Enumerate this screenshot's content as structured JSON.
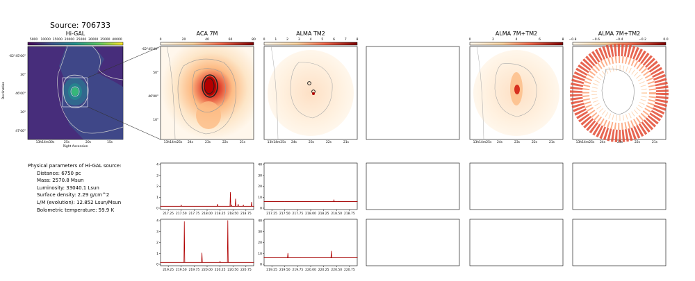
{
  "source_title": "Source: 706733",
  "panels": {
    "higal": {
      "title": "Hi-GAL",
      "colorbar_ticks": [
        "5000",
        "10000",
        "15000",
        "20000",
        "25000",
        "30000",
        "35000",
        "40000"
      ],
      "ylabel": "Declination",
      "xlabel": "Right Ascension",
      "yticks": [
        "-62°45'00\"",
        "30\"",
        "46'00\"",
        "30\"",
        "47'00\""
      ],
      "xticks": [
        "13h14m30s",
        "25s",
        "20s",
        "15s"
      ]
    },
    "aca7m": {
      "title": "ACA 7M",
      "colorbar_ticks": [
        "0",
        "20",
        "40",
        "60",
        "80"
      ],
      "yticks": [
        "-62°45'40\"",
        "50\"",
        "46'00\"",
        "10\""
      ],
      "xticks": [
        "13h14m25s",
        "24s",
        "23s",
        "22s",
        "21s"
      ]
    },
    "tm2": {
      "title": "ALMA TM2",
      "colorbar_ticks": [
        "0",
        "1",
        "2",
        "3",
        "4",
        "5",
        "6",
        "7",
        "8"
      ],
      "xticks": [
        "13h14m25s",
        "24s",
        "23s",
        "22s",
        "21s"
      ]
    },
    "combo": {
      "title": "ALMA 7M+TM2",
      "colorbar_ticks": [
        "0",
        "2",
        "4",
        "6",
        "8"
      ],
      "xticks": [
        "13h14m25s",
        "24s",
        "23s",
        "22s",
        "21s"
      ]
    },
    "diff": {
      "title": "ALMA 7M+TM2",
      "colorbar_ticks": [
        "−0.8",
        "−0.6",
        "−0.4",
        "−0.2",
        "0.0"
      ],
      "xticks": [
        "13h14m25s",
        "24s",
        "23s",
        "22s",
        "21s"
      ]
    }
  },
  "params": {
    "heading": "Physical parameters of Hi-GAL source:",
    "items": [
      "Distance: 6750 pc",
      "Mass: 2570.8 Msun",
      "Luminosity: 33040.1 Lsun",
      "Surface density: 2.29 g/cm^2",
      "L/M (evolution): 12.852 Lsun/Msun",
      "Bolometric temperature: 59.9 K"
    ]
  },
  "colors": {
    "spectrum": "#b00000",
    "baseline": "#000000",
    "contour": "#999999"
  },
  "chart_data": [
    {
      "type": "line",
      "name": "aca7m-spw1",
      "x": [
        217.1,
        217.5,
        217.9,
        218.2,
        218.45,
        218.47,
        218.55,
        218.6,
        218.7,
        218.86,
        218.9
      ],
      "y": [
        0.2,
        0.3,
        0.2,
        0.4,
        1.5,
        0.3,
        0.9,
        0.4,
        0.3,
        0.6,
        0.2
      ],
      "xticks": [
        "217.25",
        "217.50",
        "217.75",
        "218.00",
        "218.25",
        "218.50",
        "218.75"
      ],
      "yticks": [
        "0",
        "1",
        "2",
        "3",
        "4"
      ],
      "xlim": [
        217.1,
        218.9
      ],
      "ylim": [
        -0.1,
        4.2
      ]
    },
    {
      "type": "line",
      "name": "tm2-spw1",
      "x": [
        217.1,
        217.5,
        218.0,
        218.3,
        218.45,
        218.55,
        218.9
      ],
      "y": [
        5.5,
        5.4,
        5.6,
        5.5,
        7.0,
        5.8,
        5.5
      ],
      "xticks": [
        "217.25",
        "217.50",
        "217.75",
        "218.00",
        "218.25",
        "218.50",
        "218.75"
      ],
      "yticks": [
        "0",
        "10",
        "20",
        "30",
        "40"
      ],
      "xlim": [
        217.1,
        218.9
      ],
      "ylim": [
        -2,
        42
      ]
    },
    {
      "type": "line",
      "name": "aca7m-spw2",
      "x": [
        219.1,
        219.3,
        219.56,
        219.7,
        219.9,
        220.1,
        220.25,
        220.4,
        220.6,
        220.9
      ],
      "y": [
        0.2,
        0.2,
        4.0,
        0.2,
        1.1,
        0.2,
        0.3,
        4.1,
        0.2,
        0.2
      ],
      "xticks": [
        "219.25",
        "219.50",
        "219.75",
        "220.00",
        "220.25",
        "220.50",
        "220.75"
      ],
      "yticks": [
        "0",
        "1",
        "2",
        "3",
        "4"
      ],
      "xlim": [
        219.1,
        220.9
      ],
      "ylim": [
        -0.1,
        4.2
      ]
    },
    {
      "type": "line",
      "name": "tm2-spw2",
      "x": [
        219.1,
        219.56,
        219.8,
        220.1,
        220.4,
        220.9
      ],
      "y": [
        5.5,
        10.0,
        5.6,
        5.5,
        12.0,
        5.5
      ],
      "xticks": [
        "219.25",
        "219.50",
        "219.75",
        "220.00",
        "220.25",
        "220.50",
        "220.75"
      ],
      "yticks": [
        "0",
        "10",
        "20",
        "30",
        "40"
      ],
      "xlim": [
        219.1,
        220.9
      ],
      "ylim": [
        -2,
        42
      ]
    }
  ]
}
